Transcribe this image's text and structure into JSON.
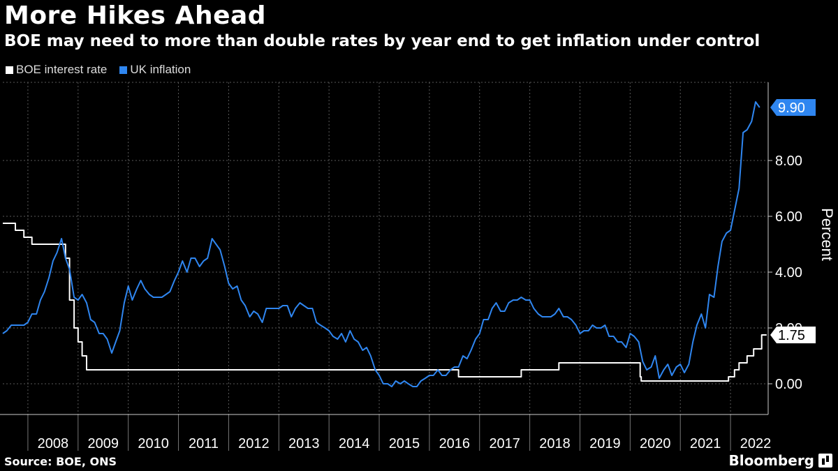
{
  "header": {
    "title": "More Hikes Ahead",
    "subtitle": "BOE may need to more than double rates by year end to get inflation under control"
  },
  "footer": {
    "source": "Source: BOE, ONS",
    "brand": "Bloomberg"
  },
  "colors": {
    "background": "#000000",
    "rate": "#ffffff",
    "inflation": "#2f86f0",
    "grid": "#5a5a5a"
  },
  "chart_data": {
    "type": "line",
    "ylabel": "Percent",
    "ylim": [
      -1.1,
      10.8
    ],
    "yticks": [
      0,
      2,
      4,
      6,
      8
    ],
    "ytick_labels": [
      "0.00",
      "2.00",
      "4.00",
      "6.00",
      "8.00"
    ],
    "xlim": [
      2007.5,
      2022.75
    ],
    "x_categories": [
      "2008",
      "2009",
      "2010",
      "2011",
      "2012",
      "2013",
      "2014",
      "2015",
      "2016",
      "2017",
      "2018",
      "2019",
      "2020",
      "2021",
      "2022"
    ],
    "grid": true,
    "legend_position": "top-left",
    "end_labels": [
      {
        "series": "UK inflation",
        "text": "9.90"
      },
      {
        "series": "BOE interest rate",
        "text": "1.75"
      }
    ],
    "series": [
      {
        "name": "BOE interest rate",
        "color": "#ffffff",
        "step": true,
        "points": [
          [
            2007.5,
            5.75
          ],
          [
            2007.75,
            5.5
          ],
          [
            2007.92,
            5.25
          ],
          [
            2008.08,
            5.0
          ],
          [
            2008.75,
            4.5
          ],
          [
            2008.83,
            3.0
          ],
          [
            2008.92,
            2.0
          ],
          [
            2009.0,
            1.5
          ],
          [
            2009.08,
            1.0
          ],
          [
            2009.17,
            0.5
          ],
          [
            2016.58,
            0.25
          ],
          [
            2017.83,
            0.5
          ],
          [
            2018.58,
            0.75
          ],
          [
            2020.2,
            0.25
          ],
          [
            2020.22,
            0.1
          ],
          [
            2021.96,
            0.25
          ],
          [
            2022.08,
            0.5
          ],
          [
            2022.17,
            0.75
          ],
          [
            2022.33,
            1.0
          ],
          [
            2022.46,
            1.25
          ],
          [
            2022.62,
            1.75
          ],
          [
            2022.72,
            1.75
          ]
        ]
      },
      {
        "name": "UK inflation",
        "color": "#2f86f0",
        "step": false,
        "points": [
          [
            2007.5,
            1.8
          ],
          [
            2007.58,
            1.9
          ],
          [
            2007.67,
            2.1
          ],
          [
            2007.75,
            2.1
          ],
          [
            2007.83,
            2.1
          ],
          [
            2007.92,
            2.1
          ],
          [
            2008.0,
            2.2
          ],
          [
            2008.08,
            2.5
          ],
          [
            2008.17,
            2.5
          ],
          [
            2008.25,
            3.0
          ],
          [
            2008.33,
            3.3
          ],
          [
            2008.42,
            3.8
          ],
          [
            2008.5,
            4.4
          ],
          [
            2008.58,
            4.7
          ],
          [
            2008.67,
            5.2
          ],
          [
            2008.75,
            4.5
          ],
          [
            2008.83,
            4.1
          ],
          [
            2008.92,
            3.1
          ],
          [
            2009.0,
            3.0
          ],
          [
            2009.08,
            3.2
          ],
          [
            2009.17,
            2.9
          ],
          [
            2009.25,
            2.3
          ],
          [
            2009.33,
            2.2
          ],
          [
            2009.42,
            1.8
          ],
          [
            2009.5,
            1.8
          ],
          [
            2009.58,
            1.6
          ],
          [
            2009.67,
            1.1
          ],
          [
            2009.75,
            1.5
          ],
          [
            2009.83,
            1.9
          ],
          [
            2009.92,
            2.9
          ],
          [
            2010.0,
            3.5
          ],
          [
            2010.08,
            3.0
          ],
          [
            2010.17,
            3.4
          ],
          [
            2010.25,
            3.7
          ],
          [
            2010.33,
            3.4
          ],
          [
            2010.42,
            3.2
          ],
          [
            2010.5,
            3.1
          ],
          [
            2010.58,
            3.1
          ],
          [
            2010.67,
            3.1
          ],
          [
            2010.75,
            3.2
          ],
          [
            2010.83,
            3.3
          ],
          [
            2010.92,
            3.7
          ],
          [
            2011.0,
            4.0
          ],
          [
            2011.08,
            4.4
          ],
          [
            2011.17,
            4.0
          ],
          [
            2011.25,
            4.5
          ],
          [
            2011.33,
            4.5
          ],
          [
            2011.42,
            4.2
          ],
          [
            2011.5,
            4.4
          ],
          [
            2011.58,
            4.5
          ],
          [
            2011.67,
            5.2
          ],
          [
            2011.75,
            5.0
          ],
          [
            2011.83,
            4.8
          ],
          [
            2011.92,
            4.2
          ],
          [
            2012.0,
            3.6
          ],
          [
            2012.08,
            3.4
          ],
          [
            2012.17,
            3.5
          ],
          [
            2012.25,
            3.0
          ],
          [
            2012.33,
            2.8
          ],
          [
            2012.42,
            2.4
          ],
          [
            2012.5,
            2.6
          ],
          [
            2012.58,
            2.5
          ],
          [
            2012.67,
            2.2
          ],
          [
            2012.75,
            2.7
          ],
          [
            2012.83,
            2.7
          ],
          [
            2012.92,
            2.7
          ],
          [
            2013.0,
            2.7
          ],
          [
            2013.08,
            2.8
          ],
          [
            2013.17,
            2.8
          ],
          [
            2013.25,
            2.4
          ],
          [
            2013.33,
            2.7
          ],
          [
            2013.42,
            2.9
          ],
          [
            2013.5,
            2.8
          ],
          [
            2013.58,
            2.7
          ],
          [
            2013.67,
            2.7
          ],
          [
            2013.75,
            2.2
          ],
          [
            2013.83,
            2.1
          ],
          [
            2013.92,
            2.0
          ],
          [
            2014.0,
            1.9
          ],
          [
            2014.08,
            1.7
          ],
          [
            2014.17,
            1.6
          ],
          [
            2014.25,
            1.8
          ],
          [
            2014.33,
            1.5
          ],
          [
            2014.42,
            1.9
          ],
          [
            2014.5,
            1.6
          ],
          [
            2014.58,
            1.5
          ],
          [
            2014.67,
            1.2
          ],
          [
            2014.75,
            1.3
          ],
          [
            2014.83,
            1.0
          ],
          [
            2014.92,
            0.5
          ],
          [
            2015.0,
            0.3
          ],
          [
            2015.08,
            0.0
          ],
          [
            2015.17,
            0.0
          ],
          [
            2015.25,
            -0.1
          ],
          [
            2015.33,
            0.1
          ],
          [
            2015.42,
            0.0
          ],
          [
            2015.5,
            0.1
          ],
          [
            2015.58,
            0.0
          ],
          [
            2015.67,
            -0.1
          ],
          [
            2015.75,
            -0.1
          ],
          [
            2015.83,
            0.1
          ],
          [
            2015.92,
            0.2
          ],
          [
            2016.0,
            0.3
          ],
          [
            2016.08,
            0.3
          ],
          [
            2016.17,
            0.5
          ],
          [
            2016.25,
            0.3
          ],
          [
            2016.33,
            0.3
          ],
          [
            2016.42,
            0.5
          ],
          [
            2016.5,
            0.6
          ],
          [
            2016.58,
            0.6
          ],
          [
            2016.67,
            1.0
          ],
          [
            2016.75,
            0.9
          ],
          [
            2016.83,
            1.2
          ],
          [
            2016.92,
            1.6
          ],
          [
            2017.0,
            1.8
          ],
          [
            2017.08,
            2.3
          ],
          [
            2017.17,
            2.3
          ],
          [
            2017.25,
            2.7
          ],
          [
            2017.33,
            2.9
          ],
          [
            2017.42,
            2.6
          ],
          [
            2017.5,
            2.6
          ],
          [
            2017.58,
            2.9
          ],
          [
            2017.67,
            3.0
          ],
          [
            2017.75,
            3.0
          ],
          [
            2017.83,
            3.1
          ],
          [
            2017.92,
            3.0
          ],
          [
            2018.0,
            3.0
          ],
          [
            2018.08,
            2.7
          ],
          [
            2018.17,
            2.5
          ],
          [
            2018.25,
            2.4
          ],
          [
            2018.33,
            2.4
          ],
          [
            2018.42,
            2.4
          ],
          [
            2018.5,
            2.5
          ],
          [
            2018.58,
            2.7
          ],
          [
            2018.67,
            2.4
          ],
          [
            2018.75,
            2.4
          ],
          [
            2018.83,
            2.3
          ],
          [
            2018.92,
            2.1
          ],
          [
            2019.0,
            1.8
          ],
          [
            2019.08,
            1.9
          ],
          [
            2019.17,
            1.9
          ],
          [
            2019.25,
            2.1
          ],
          [
            2019.33,
            2.0
          ],
          [
            2019.42,
            2.0
          ],
          [
            2019.5,
            2.1
          ],
          [
            2019.58,
            1.7
          ],
          [
            2019.67,
            1.7
          ],
          [
            2019.75,
            1.5
          ],
          [
            2019.83,
            1.5
          ],
          [
            2019.92,
            1.3
          ],
          [
            2020.0,
            1.8
          ],
          [
            2020.08,
            1.7
          ],
          [
            2020.17,
            1.5
          ],
          [
            2020.25,
            0.8
          ],
          [
            2020.33,
            0.5
          ],
          [
            2020.42,
            0.6
          ],
          [
            2020.5,
            1.0
          ],
          [
            2020.58,
            0.2
          ],
          [
            2020.67,
            0.5
          ],
          [
            2020.75,
            0.7
          ],
          [
            2020.83,
            0.3
          ],
          [
            2020.92,
            0.6
          ],
          [
            2021.0,
            0.7
          ],
          [
            2021.08,
            0.4
          ],
          [
            2021.17,
            0.7
          ],
          [
            2021.25,
            1.5
          ],
          [
            2021.33,
            2.1
          ],
          [
            2021.42,
            2.5
          ],
          [
            2021.5,
            2.0
          ],
          [
            2021.58,
            3.2
          ],
          [
            2021.67,
            3.1
          ],
          [
            2021.75,
            4.2
          ],
          [
            2021.83,
            5.1
          ],
          [
            2021.92,
            5.4
          ],
          [
            2022.0,
            5.5
          ],
          [
            2022.08,
            6.2
          ],
          [
            2022.17,
            7.0
          ],
          [
            2022.25,
            9.0
          ],
          [
            2022.33,
            9.1
          ],
          [
            2022.42,
            9.4
          ],
          [
            2022.5,
            10.1
          ],
          [
            2022.58,
            9.9
          ]
        ]
      }
    ]
  }
}
